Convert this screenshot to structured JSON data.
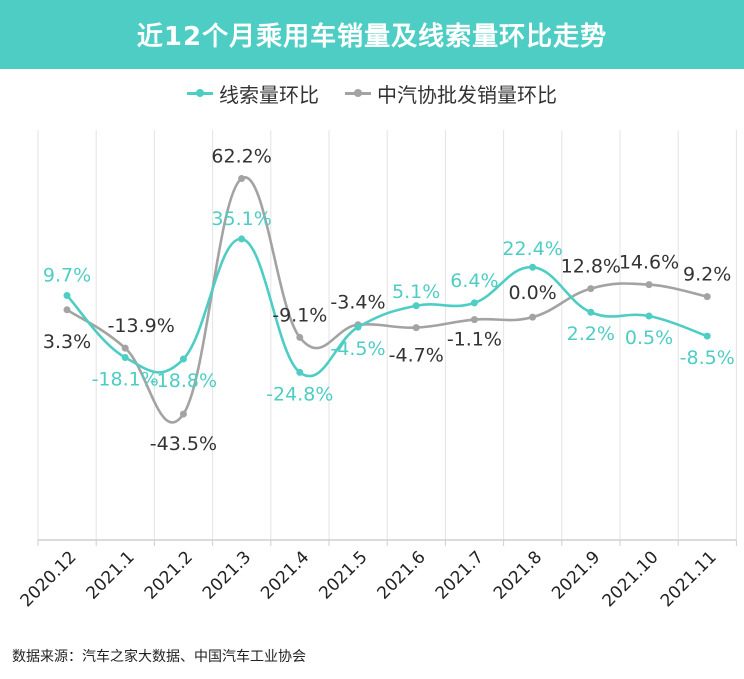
{
  "title": "近12个月乘用车销量及线索量环比走势",
  "source": "数据来源：汽车之家大数据、中国汽车工业协会",
  "colors": {
    "accent": "#4ecdc4",
    "series1": "#4ecdc4",
    "series2": "#a3a3a3",
    "label2": "#333333"
  },
  "chart_data": {
    "type": "line",
    "title": "近12个月乘用车销量及线索量环比走势",
    "categories": [
      "2020.12",
      "2021.1",
      "2021.2",
      "2021.3",
      "2021.4",
      "2021.5",
      "2021.6",
      "2021.7",
      "2021.8",
      "2021.9",
      "2021.10",
      "2021.11"
    ],
    "series": [
      {
        "name": "线索量环比",
        "values": [
          9.7,
          -18.1,
          -18.8,
          35.1,
          -24.8,
          -4.5,
          5.1,
          6.4,
          22.4,
          2.2,
          0.5,
          -8.5
        ],
        "labels": [
          "9.7%",
          "-18.1%",
          "-18.8%",
          "35.1%",
          "-24.8%",
          "-4.5%",
          "5.1%",
          "6.4%",
          "22.4%",
          "2.2%",
          "0.5%",
          "-8.5%"
        ]
      },
      {
        "name": "中汽协批发销量环比",
        "values": [
          3.3,
          -13.9,
          -43.5,
          62.2,
          -9.1,
          -3.4,
          -4.7,
          -1.1,
          0.0,
          12.8,
          14.6,
          9.2
        ],
        "labels": [
          "3.3%",
          "-13.9%",
          "-43.5%",
          "62.2%",
          "-9.1%",
          "-3.4%",
          "-4.7%",
          "-1.1%",
          "0.0%",
          "12.8%",
          "14.6%",
          "9.2%"
        ]
      }
    ],
    "xlabel": "",
    "ylabel": "",
    "ylim": [
      -100,
      75
    ],
    "grid": "vertical",
    "legend": "top-center"
  }
}
